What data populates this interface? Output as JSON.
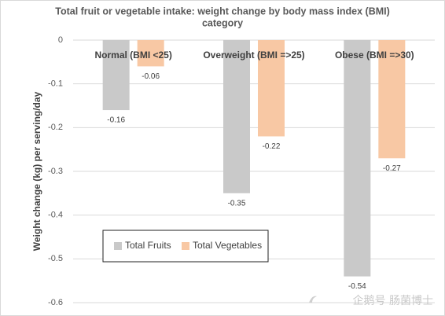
{
  "chart_data": {
    "type": "bar",
    "title_lines": [
      "Total fruit or vegetable intake: weight change by body mass index (BMI)",
      "category"
    ],
    "ylabel": "Weight change (kg) per serving/day",
    "xlabel": "",
    "categories": [
      "Normal (BMI <25)",
      "Overweight (BMI =>25)",
      "Obese (BMI =>30)"
    ],
    "series": [
      {
        "name": "Total Fruits",
        "values": [
          -0.16,
          -0.35,
          -0.54
        ],
        "labels": [
          "-0.16",
          "-0.35",
          "-0.54"
        ],
        "color": "#c9c9c9"
      },
      {
        "name": "Total Vegetables",
        "values": [
          -0.06,
          -0.22,
          -0.27
        ],
        "labels": [
          "-0.06",
          "-0.22",
          "-0.27"
        ],
        "color": "#f8c8a4"
      }
    ],
    "ylim": [
      -0.6,
      0
    ],
    "yticks": [
      0,
      -0.1,
      -0.2,
      -0.3,
      -0.4,
      -0.5,
      -0.6
    ],
    "ytick_labels": [
      "0",
      "-0.1",
      "-0.2",
      "-0.3",
      "-0.4",
      "-0.5",
      "-0.6"
    ],
    "grid": true,
    "legend_placement": "bottom-left"
  },
  "watermark": {
    "text": "企鹅号 肠菌博士"
  },
  "colors": {
    "grid": "#d9d9d9",
    "axis_text": "#595959"
  }
}
